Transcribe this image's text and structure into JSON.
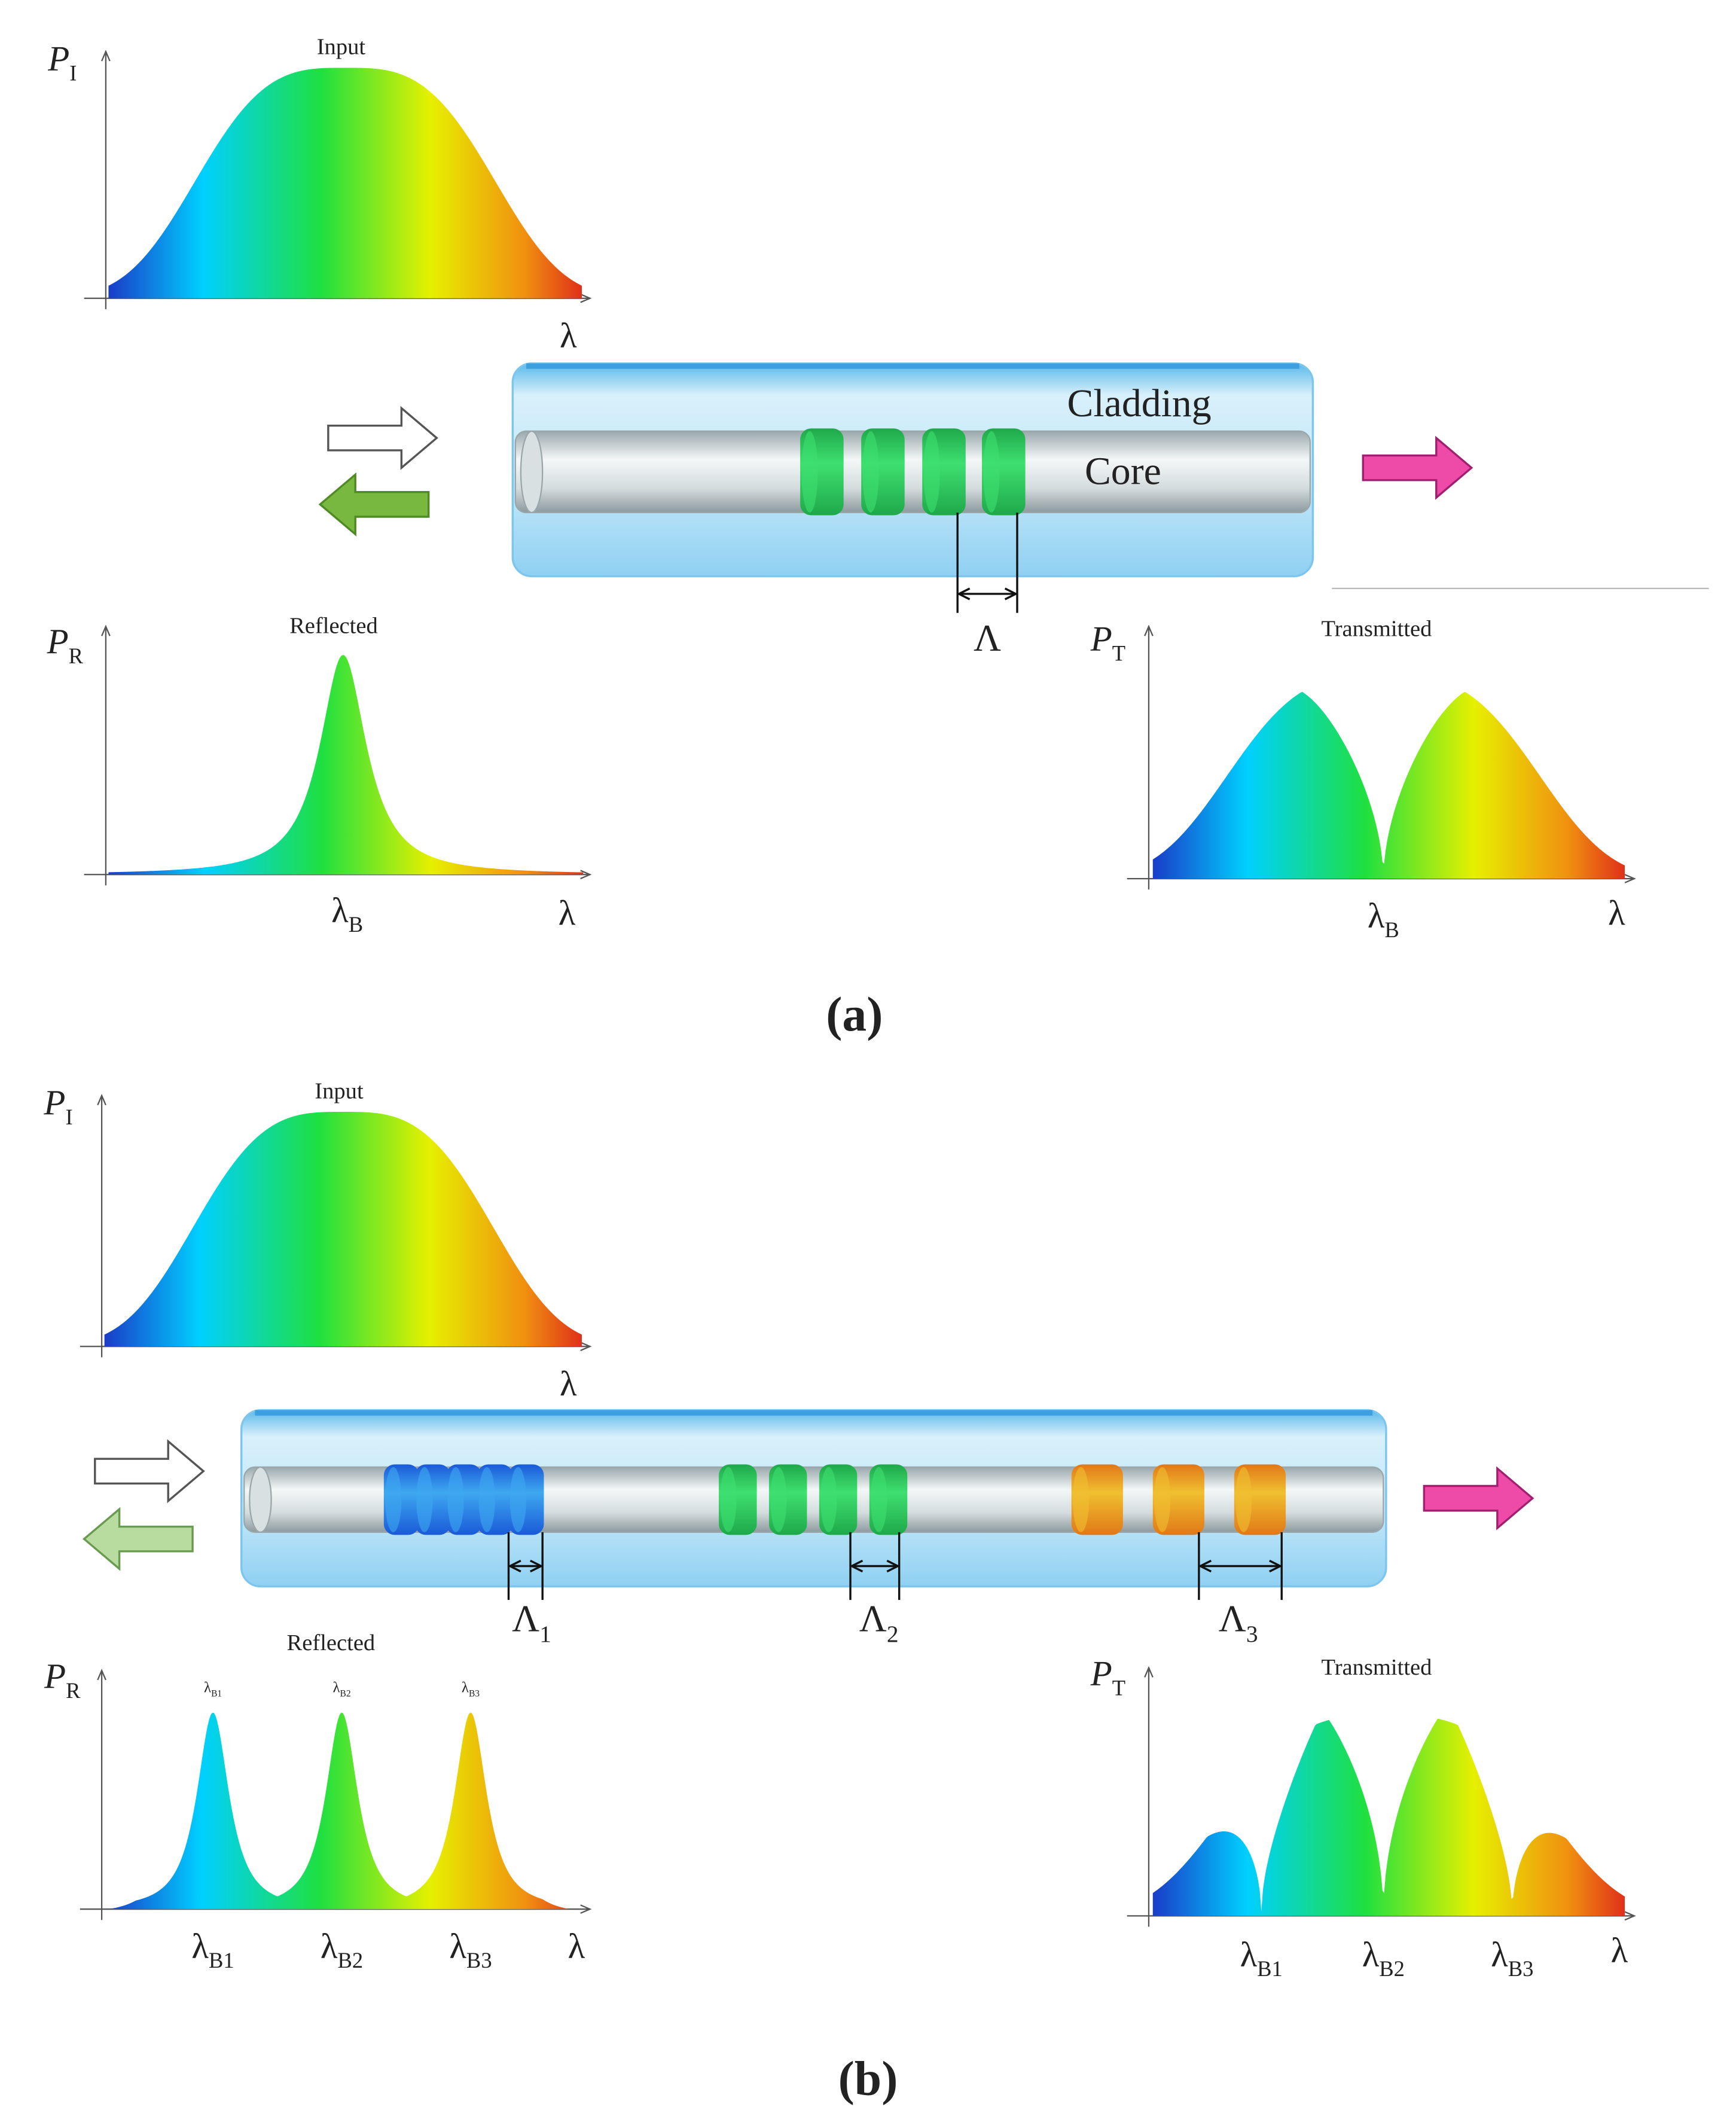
{
  "panel_a": {
    "input_plot": {
      "y_symbol": "P",
      "y_sub": "I",
      "title": "Input",
      "x_symbol": "λ"
    },
    "fiber": {
      "cladding": "Cladding",
      "core": "Core",
      "period": "Λ"
    },
    "reflected_plot": {
      "y_symbol": "P",
      "y_sub": "R",
      "title": "Reflected",
      "peak_symbol": "λ",
      "peak_sub": "B",
      "x_symbol": "λ"
    },
    "transmitted_plot": {
      "y_symbol": "P",
      "y_sub": "T",
      "title": "Transmitted",
      "dip_symbol": "λ",
      "dip_sub": "B",
      "x_symbol": "λ"
    },
    "label": "(a)"
  },
  "panel_b": {
    "input_plot": {
      "y_symbol": "P",
      "y_sub": "I",
      "title": "Input",
      "x_symbol": "λ"
    },
    "fiber": {
      "periods": [
        {
          "symbol": "Λ",
          "sub": "1"
        },
        {
          "symbol": "Λ",
          "sub": "2"
        },
        {
          "symbol": "Λ",
          "sub": "3"
        }
      ]
    },
    "reflected_plot": {
      "y_symbol": "P",
      "y_sub": "R",
      "title": "Reflected",
      "peaks": [
        {
          "symbol": "λ",
          "sub": "B1"
        },
        {
          "symbol": "λ",
          "sub": "B2"
        },
        {
          "symbol": "λ",
          "sub": "B3"
        }
      ],
      "x_symbol": "λ"
    },
    "transmitted_plot": {
      "y_symbol": "P",
      "y_sub": "T",
      "title": "Transmitted",
      "dips": [
        {
          "symbol": "λ",
          "sub": "B1"
        },
        {
          "symbol": "λ",
          "sub": "B2"
        },
        {
          "symbol": "λ",
          "sub": "B3"
        }
      ],
      "x_symbol": "λ"
    },
    "label": "(b)"
  }
}
